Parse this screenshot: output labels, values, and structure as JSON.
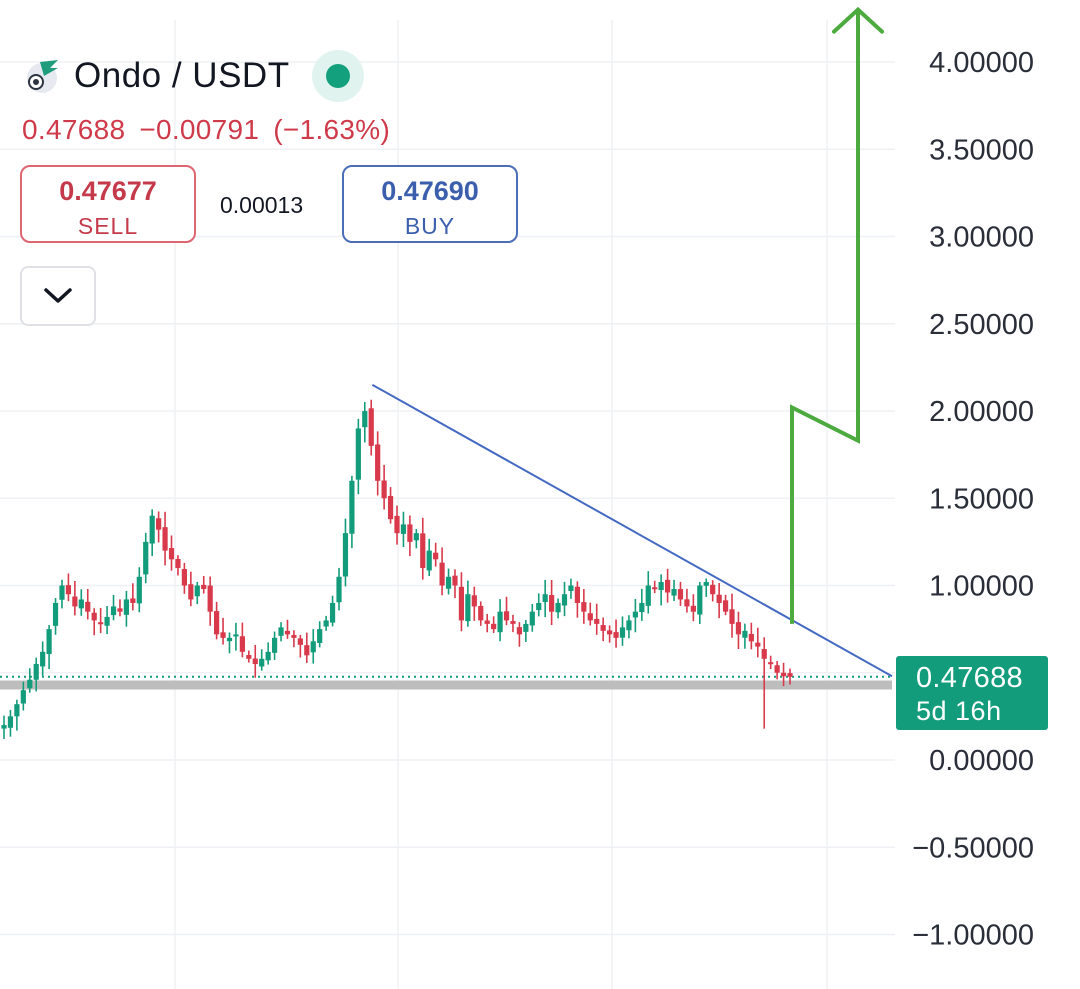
{
  "header": {
    "symbol": "Ondo / USDT",
    "last_price": "0.47688",
    "change": "−0.00791",
    "change_pct": "(−1.63%)"
  },
  "trade": {
    "sell_price": "0.47677",
    "sell_label": "SELL",
    "spread": "0.00013",
    "buy_price": "0.47690",
    "buy_label": "BUY"
  },
  "price_label": {
    "price": "0.47688",
    "countdown": "5d 16h"
  },
  "colors": {
    "up": "#139c7b",
    "down": "#d8394b",
    "trendline": "#4469c2",
    "projection": "#4caa3f",
    "support": "#bdbdbd"
  },
  "icons": {
    "logo": "ondo-logo-icon",
    "status": "market-open-dot",
    "collapse": "chevron-down-icon"
  },
  "chart_data": {
    "type": "candlestick",
    "series": [
      {
        "name": "Ondo / USDT"
      }
    ],
    "y_axis": {
      "position": "right",
      "ylim": [
        -1.2,
        4.2
      ],
      "ticks": [
        4.0,
        3.5,
        3.0,
        2.5,
        2.0,
        1.5,
        1.0,
        0.0,
        -0.5,
        -1.0
      ],
      "tick_labels": [
        "4.00000",
        "3.50000",
        "3.00000",
        "2.50000",
        "2.00000",
        "1.50000",
        "1.00000",
        "0.00000",
        "−0.50000",
        "−1.00000"
      ]
    },
    "grid": true,
    "price_path": [
      0.2,
      0.25,
      0.32,
      0.4,
      0.46,
      0.55,
      0.62,
      0.75,
      0.9,
      1.0,
      0.95,
      0.88,
      0.92,
      0.85,
      0.8,
      0.78,
      0.82,
      0.88,
      0.85,
      0.92,
      0.9,
      1.05,
      1.25,
      1.4,
      1.32,
      1.2,
      1.15,
      1.1,
      1.0,
      0.92,
      1.0,
      0.98,
      0.85,
      0.72,
      0.7,
      0.7,
      0.72,
      0.62,
      0.58,
      0.55,
      0.58,
      0.62,
      0.7,
      0.76,
      0.72,
      0.7,
      0.66,
      0.6,
      0.68,
      0.75,
      0.8,
      0.9,
      1.05,
      1.3,
      1.6,
      1.9,
      2.0,
      1.8,
      1.6,
      1.5,
      1.38,
      1.3,
      1.35,
      1.25,
      1.3,
      1.1,
      1.2,
      1.15,
      1.0,
      1.05,
      1.0,
      0.8,
      0.95,
      0.88,
      0.8,
      0.78,
      0.75,
      0.85,
      0.8,
      0.78,
      0.72,
      0.78,
      0.85,
      0.9,
      0.95,
      0.85,
      0.9,
      0.95,
      1.0,
      0.9,
      0.85,
      0.8,
      0.78,
      0.74,
      0.72,
      0.7,
      0.76,
      0.8,
      0.85,
      0.9,
      1.0,
      0.98,
      1.02,
      0.96,
      0.98,
      0.92,
      0.88,
      0.85,
      1.0,
      1.02,
      0.95,
      0.9,
      0.85,
      0.78,
      0.72,
      0.74,
      0.68,
      0.65,
      0.58,
      0.55,
      0.5,
      0.48,
      0.477
    ],
    "last_price": 0.47688,
    "annotations": {
      "descending_trendline": [
        [
          0.49,
          2.15
        ],
        [
          1.0,
          0.48
        ]
      ],
      "support_level": 0.43,
      "projection_path": [
        0.78,
        2.02,
        1.83,
        4.3
      ]
    }
  }
}
